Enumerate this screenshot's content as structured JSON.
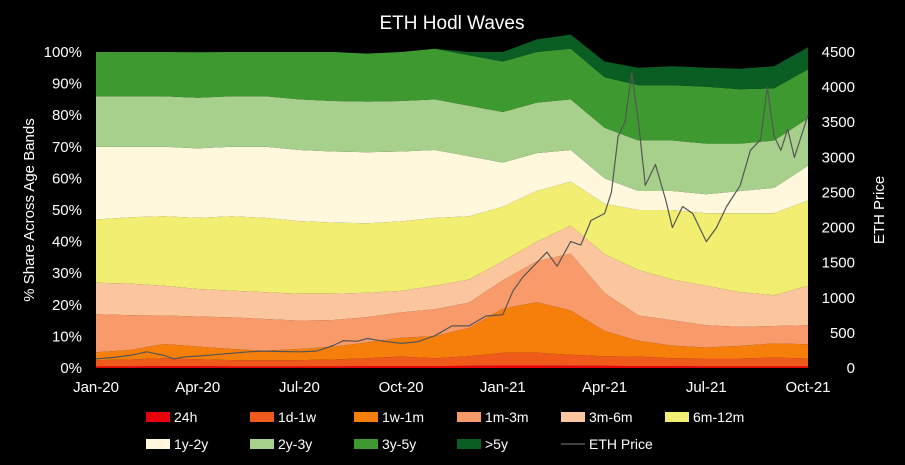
{
  "chart_data": {
    "type": "area",
    "stacked": true,
    "title": "ETH Hodl Waves",
    "ylabel": "% Share Across Age Bands",
    "y2label": "ETH Price",
    "ylim": [
      0,
      100
    ],
    "y2lim": [
      0,
      4500
    ],
    "xlim": [
      0,
      21
    ],
    "x_tick_labels": [
      "Jan-20",
      "Apr-20",
      "Jul-20",
      "Oct-20",
      "Jan-21",
      "Apr-21",
      "Jul-21",
      "Oct-21"
    ],
    "x_tick_positions": [
      0,
      3,
      6,
      9,
      12,
      15,
      18,
      21
    ],
    "y_tick_labels": [
      "0%",
      "10%",
      "20%",
      "30%",
      "40%",
      "50%",
      "60%",
      "70%",
      "80%",
      "90%",
      "100%"
    ],
    "y_tick_values": [
      0,
      10,
      20,
      30,
      40,
      50,
      60,
      70,
      80,
      90,
      100
    ],
    "y2_tick_labels": [
      "0",
      "500",
      "1000",
      "1500",
      "2000",
      "2500",
      "3000",
      "3500",
      "4000",
      "4500"
    ],
    "y2_tick_values": [
      0,
      500,
      1000,
      1500,
      2000,
      2500,
      3000,
      3500,
      4000,
      4500
    ],
    "x_months": [
      0,
      1,
      2,
      3,
      4,
      5,
      6,
      7,
      8,
      9,
      10,
      11,
      12,
      13,
      14,
      15,
      16,
      17,
      18,
      19,
      20,
      21
    ],
    "series": [
      {
        "name": "24h",
        "color": "#e8000b",
        "values": [
          0.5,
          0.5,
          0.6,
          0.6,
          0.5,
          0.5,
          0.5,
          0.5,
          0.6,
          0.6,
          0.6,
          0.7,
          0.8,
          0.8,
          0.7,
          0.7,
          0.6,
          0.6,
          0.5,
          0.5,
          0.5,
          0.5
        ]
      },
      {
        "name": "1d-1w",
        "color": "#f05a1a",
        "values": [
          2.0,
          2.2,
          2.5,
          2.2,
          2.0,
          2.0,
          2.0,
          2.2,
          2.5,
          3.0,
          2.5,
          3.0,
          4.0,
          4.0,
          3.5,
          3.0,
          3.0,
          2.5,
          2.5,
          2.5,
          2.8,
          2.5
        ]
      },
      {
        "name": "1w-1m",
        "color": "#f57f0a",
        "values": [
          2.5,
          3.0,
          4.5,
          4.0,
          3.5,
          3.0,
          3.5,
          4.0,
          5.0,
          6.0,
          7.0,
          9.0,
          14.0,
          16.0,
          14.0,
          8.0,
          5.0,
          4.0,
          3.5,
          4.0,
          4.5,
          4.5
        ]
      },
      {
        "name": "1m-3m",
        "color": "#f89a6a",
        "values": [
          12.0,
          11.0,
          9.0,
          9.5,
          10.0,
          10.0,
          9.0,
          8.5,
          8.0,
          8.0,
          8.5,
          8.0,
          9.0,
          13.0,
          18.0,
          12.0,
          8.0,
          8.0,
          7.0,
          6.0,
          5.5,
          6.0
        ]
      },
      {
        "name": "3m-6m",
        "color": "#fbc59e",
        "values": [
          10.0,
          10.0,
          9.4,
          8.7,
          8.5,
          8.5,
          8.5,
          8.3,
          7.7,
          6.8,
          7.4,
          7.3,
          6.0,
          6.2,
          8.8,
          12.3,
          14.4,
          12.9,
          12.5,
          11.0,
          9.7,
          12.5
        ]
      },
      {
        "name": "6m-12m",
        "color": "#f2ee72",
        "values": [
          20.0,
          21.0,
          22.0,
          22.5,
          23.5,
          23.5,
          23.0,
          22.5,
          22.0,
          22.0,
          21.5,
          20.0,
          17.2,
          16.0,
          14.0,
          16.0,
          19.0,
          22.0,
          23.0,
          25.0,
          26.0,
          27.0
        ]
      },
      {
        "name": "1y-2y",
        "color": "#fff8dc",
        "values": [
          23.0,
          22.3,
          22.0,
          22.0,
          22.0,
          22.5,
          22.5,
          22.5,
          22.5,
          22.1,
          21.5,
          19.0,
          14.0,
          12.0,
          10.0,
          8.0,
          6.0,
          6.0,
          6.0,
          7.0,
          8.0,
          11.0
        ]
      },
      {
        "name": "2y-3y",
        "color": "#a8d08d",
        "values": [
          16.0,
          16.0,
          16.0,
          16.0,
          16.0,
          16.0,
          16.0,
          16.0,
          16.0,
          16.0,
          16.0,
          16.0,
          16.0,
          16.0,
          16.0,
          16.0,
          16.0,
          16.0,
          16.0,
          15.0,
          15.0,
          15.0
        ]
      },
      {
        "name": "3y-5y",
        "color": "#3e9a30",
        "values": [
          14.0,
          14.0,
          14.0,
          14.4,
          14.0,
          14.0,
          15.0,
          15.5,
          15.2,
          15.5,
          16.0,
          16.0,
          16.0,
          16.0,
          16.0,
          16.0,
          17.5,
          17.5,
          18.0,
          17.2,
          16.5,
          15.5
        ]
      },
      {
        "name": ">5y",
        "color": "#0a5e24",
        "values": [
          0.0,
          0.0,
          0.0,
          0.0,
          0.0,
          0.0,
          0.0,
          0.0,
          0.0,
          0.0,
          0.0,
          1.0,
          3.0,
          4.0,
          4.5,
          5.0,
          5.5,
          6.0,
          6.0,
          6.5,
          7.0,
          7.0
        ]
      }
    ],
    "price_series": {
      "name": "ETH Price",
      "color": "#555555",
      "x": [
        0,
        0.5,
        1,
        1.5,
        2,
        2.3,
        2.6,
        3,
        3.5,
        4,
        4.5,
        5,
        5.5,
        6,
        6.5,
        7,
        7.3,
        7.7,
        8,
        8.5,
        9,
        9.5,
        10,
        10.5,
        11,
        11.5,
        12,
        12.3,
        12.6,
        13,
        13.3,
        13.6,
        14,
        14.3,
        14.6,
        15,
        15.2,
        15.4,
        15.6,
        15.8,
        16,
        16.2,
        16.5,
        16.8,
        17,
        17.3,
        17.6,
        18,
        18.3,
        18.6,
        19,
        19.3,
        19.6,
        19.8,
        20,
        20.2,
        20.4,
        20.6,
        20.8,
        21
      ],
      "y": [
        130,
        150,
        180,
        230,
        180,
        130,
        160,
        170,
        190,
        210,
        230,
        240,
        235,
        230,
        240,
        320,
        390,
        380,
        420,
        380,
        350,
        375,
        460,
        600,
        600,
        740,
        760,
        1100,
        1300,
        1500,
        1650,
        1450,
        1800,
        1750,
        2100,
        2200,
        2500,
        3300,
        3500,
        4200,
        3500,
        2600,
        2900,
        2400,
        2000,
        2300,
        2200,
        1800,
        2000,
        2300,
        2600,
        3100,
        3250,
        4000,
        3300,
        3100,
        3400,
        3000,
        3300,
        3600
      ]
    },
    "legend": {
      "placement": "bottom",
      "items": [
        "24h",
        "1d-1w",
        "1w-1m",
        "1m-3m",
        "3m-6m",
        "6m-12m",
        "1y-2y",
        "2y-3y",
        "3y-5y",
        ">5y",
        "ETH Price"
      ]
    }
  }
}
